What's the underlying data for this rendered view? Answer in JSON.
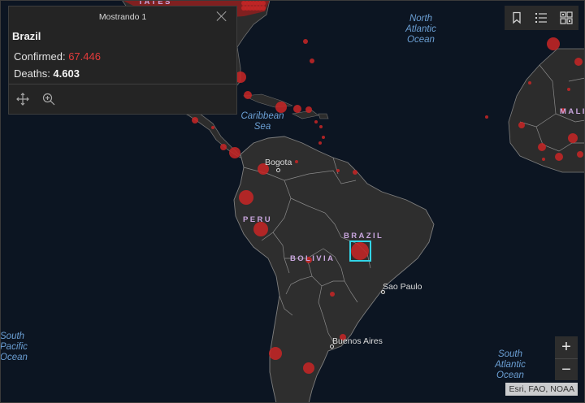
{
  "popup": {
    "header": "Mostrando 1",
    "title": "Brazil",
    "confirmed_label": "Confirmed: ",
    "confirmed_value": "67.446",
    "deaths_label": "Deaths: ",
    "deaths_value": "4.603",
    "tools": [
      "pan-icon",
      "zoom-to-icon"
    ]
  },
  "toolbar": {
    "icons": [
      "bookmark-icon",
      "legend-list-icon",
      "basemap-gallery-icon"
    ]
  },
  "zoom": {
    "in_label": "+",
    "out_label": "−"
  },
  "attribution": "Esri, FAO, NOAA",
  "labels": {
    "north_atlantic": "North\nAtlantic\nOcean",
    "caribbean": "Caribbean\nSea",
    "south_pacific": "South\nPacific\nOcean",
    "south_atlantic": "South\nAtlantic\nOcean",
    "brazil": "BRAZIL",
    "peru": "PERU",
    "bolivia": "BOLIVIA",
    "mali": "MALI",
    "states_fragment": "TATES",
    "bogota": "Bogota",
    "sao_paulo": "Sao Paulo",
    "buenos_aires": "Buenos Aires"
  },
  "colors": {
    "ocean": "#0c1522",
    "land": "#2b2b2b",
    "border": "#8a8a8a",
    "case_marker": "#c42525",
    "selection": "#32d4e6"
  }
}
